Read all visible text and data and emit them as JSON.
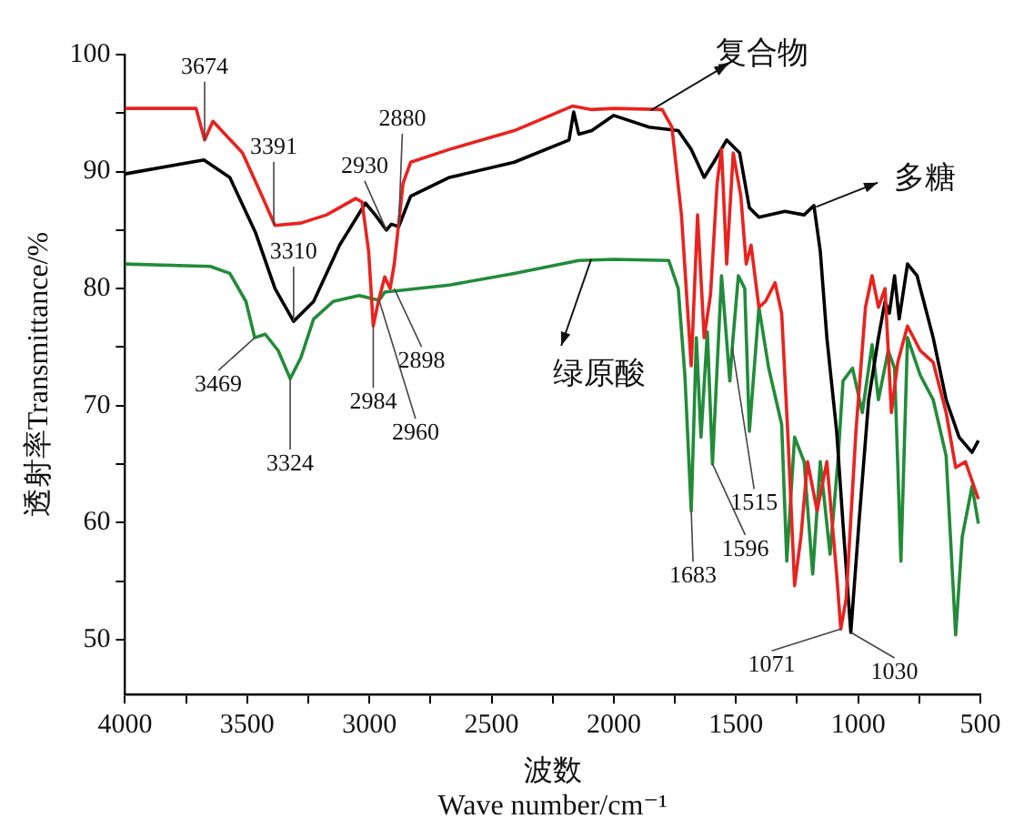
{
  "chart_data": {
    "type": "line",
    "xlabel": "波数\nWave number/cm⁻¹",
    "ylabel": "透射率Transmittance/%",
    "xlim": [
      4000,
      500
    ],
    "xticks": [
      4000,
      {
        "value": 3750,
        "label": null
      },
      3500,
      {
        "value": 3250,
        "label": null
      },
      3000,
      {
        "value": 2750,
        "label": null
      },
      2500,
      {
        "value": 2250,
        "label": null
      },
      2000,
      {
        "value": 1750,
        "label": null
      },
      1500,
      {
        "value": 1250,
        "label": null
      },
      1000,
      {
        "value": 750,
        "label": null
      },
      500
    ],
    "ylim": [
      45.3,
      100
    ],
    "yticks": [
      50,
      {
        "value": 55,
        "label": null
      },
      60,
      {
        "value": 65,
        "label": null
      },
      70,
      {
        "value": 75,
        "label": null
      },
      80,
      {
        "value": 85,
        "label": null
      },
      90,
      {
        "value": 95,
        "label": null
      },
      100
    ],
    "grid": false,
    "legend": false,
    "marker": "none",
    "line_style": "solid",
    "series": [
      {
        "name": "复合物",
        "color": "#e8231f",
        "x": [
          4000,
          3709,
          3674,
          3640,
          3519,
          3439,
          3386,
          3280,
          3175,
          3056,
          3030,
          3003,
          2984,
          2963,
          2937,
          2915,
          2898,
          2862,
          2831,
          2672,
          2407,
          2169,
          2090,
          2000,
          1802,
          1762,
          1723,
          1683,
          1657,
          1630,
          1604,
          1577,
          1559,
          1538,
          1511,
          1480,
          1458,
          1438,
          1406,
          1379,
          1340,
          1313,
          1287,
          1260,
          1234,
          1207,
          1168,
          1128,
          1088,
          1071,
          1049,
          1009,
          970,
          943,
          917,
          890,
          864,
          838,
          798,
          746,
          693,
          640,
          601,
          561,
          508
        ],
        "values": [
          95.4,
          95.4,
          92.7,
          94.3,
          91.6,
          87.9,
          85.4,
          85.6,
          86.3,
          87.7,
          87.4,
          83.2,
          76.8,
          78.9,
          81,
          80,
          82.1,
          89,
          90.8,
          91.9,
          93.5,
          95.6,
          95.3,
          95.4,
          95.3,
          93.8,
          86.3,
          73.4,
          86.3,
          75.8,
          79.5,
          89,
          91.9,
          82.1,
          91.6,
          87.9,
          82.1,
          83.7,
          78.4,
          78.9,
          80.5,
          77.9,
          67.3,
          54.6,
          58.8,
          65.2,
          61,
          65.2,
          55.6,
          50.9,
          53.5,
          67.8,
          78.4,
          81.1,
          78.4,
          80,
          69.4,
          73.7,
          76.8,
          74.7,
          73.7,
          69.4,
          64.7,
          65.2,
          62
        ]
      },
      {
        "name": "多糖",
        "color": "#000000",
        "x": [
          4000,
          3677,
          3571,
          3466,
          3386,
          3310,
          3228,
          3122,
          3016,
          2976,
          2930,
          2910,
          2880,
          2831,
          2672,
          2407,
          2183,
          2164,
          2143,
          2090,
          2000,
          1855,
          1736,
          1683,
          1630,
          1591,
          1538,
          1485,
          1445,
          1406,
          1300,
          1221,
          1181,
          1155,
          1128,
          1088,
          1062,
          1030,
          997,
          957,
          917,
          890,
          872,
          851,
          832,
          798,
          759,
          693,
          640,
          587,
          534,
          508
        ],
        "values": [
          89.8,
          91,
          89.5,
          84.8,
          80,
          77.2,
          78.9,
          83.7,
          87.3,
          86.3,
          85,
          85.5,
          85.3,
          87.9,
          89.5,
          90.8,
          92.7,
          95.1,
          93.2,
          93.5,
          94.8,
          93.8,
          93.5,
          91.9,
          89.5,
          90.8,
          92.7,
          91.6,
          86.9,
          86.1,
          86.6,
          86.3,
          87.1,
          83.2,
          75.8,
          67.8,
          59.9,
          50.6,
          59.9,
          70.5,
          75.8,
          78.9,
          77.9,
          81.1,
          77.4,
          82.1,
          81.1,
          75.8,
          70.5,
          67.3,
          66,
          67
        ]
      },
      {
        "name": "绿原酸",
        "color": "#228b3a",
        "x": [
          4000,
          3651,
          3571,
          3505,
          3469,
          3426,
          3373,
          3324,
          3280,
          3228,
          3148,
          3042,
          2960,
          2937,
          2672,
          2407,
          2143,
          2000,
          1775,
          1736,
          1709,
          1683,
          1662,
          1643,
          1617,
          1596,
          1559,
          1525,
          1515,
          1490,
          1464,
          1445,
          1406,
          1366,
          1313,
          1292,
          1260,
          1221,
          1186,
          1155,
          1115,
          1083,
          1062,
          1023,
          983,
          943,
          917,
          877,
          851,
          825,
          798,
          746,
          693,
          640,
          601,
          574,
          534,
          508
        ],
        "values": [
          82.1,
          81.9,
          81.3,
          78.9,
          75.8,
          76.1,
          74.7,
          72.3,
          74.1,
          77.4,
          78.9,
          79.4,
          79,
          79.7,
          80.3,
          81.3,
          82.4,
          82.5,
          82.4,
          80,
          72.6,
          61,
          75.8,
          67.3,
          76.3,
          65,
          81.1,
          72.1,
          75,
          81.1,
          80,
          67.8,
          78.4,
          73.2,
          68.4,
          56.7,
          67.3,
          65.2,
          55.6,
          65.2,
          57.3,
          65.2,
          72.1,
          73.2,
          69.4,
          75.2,
          70.5,
          74.7,
          73.2,
          56.7,
          75.8,
          72.6,
          70.5,
          65.7,
          50.4,
          58.8,
          63.1,
          59.9
        ]
      }
    ],
    "annotations": [
      {
        "text": "3674",
        "x": 3674,
        "y": 92.7
      },
      {
        "text": "3391",
        "x": 3391,
        "y": 85.4
      },
      {
        "text": "3310",
        "x": 3310,
        "y": 77.2
      },
      {
        "text": "2930",
        "x": 2930,
        "y": 85
      },
      {
        "text": "2880",
        "x": 2880,
        "y": 85.3
      },
      {
        "text": "2984",
        "x": 2984,
        "y": 76.8
      },
      {
        "text": "2898",
        "x": 2898,
        "y": 80
      },
      {
        "text": "2960",
        "x": 2960,
        "y": 79
      },
      {
        "text": "3469",
        "x": 3469,
        "y": 75.8
      },
      {
        "text": "3324",
        "x": 3324,
        "y": 72.3
      },
      {
        "text": "1683",
        "x": 1683,
        "y": 61
      },
      {
        "text": "1596",
        "x": 1596,
        "y": 65
      },
      {
        "text": "1515",
        "x": 1515,
        "y": 75
      },
      {
        "text": "1071",
        "x": 1071,
        "y": 50.9
      },
      {
        "text": "1030",
        "x": 1030,
        "y": 50.6
      }
    ]
  }
}
